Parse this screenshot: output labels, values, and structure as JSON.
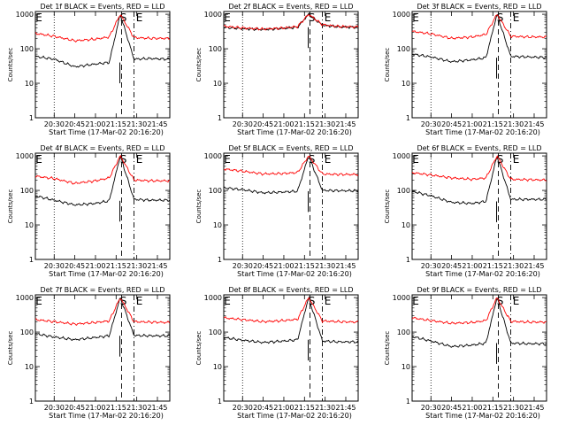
{
  "figure": {
    "panel_title_template": "Det {det} BLACK = Events, RED = LLD",
    "xlabel": "Start Time (17-Mar-02 20:16:20)",
    "ylabel": "Counts/sec",
    "markers": {
      "start": "S",
      "end": "E"
    },
    "colors": {
      "events": "#000000",
      "lld": "#ff0000",
      "frame": "#000000"
    }
  },
  "chart_data": [
    {
      "type": "line",
      "title": "Det 1f BLACK = Events, RED = LLD",
      "xlabel": "Start Time (17-Mar-02 20:16:20)",
      "ylabel": "Counts/sec",
      "x_ticks": [
        "20:30",
        "20:45",
        "21:00",
        "21:15",
        "21:30",
        "21:45"
      ],
      "y_ticks": [
        "1",
        "10",
        "100",
        "1000"
      ],
      "yscale": "log",
      "ylim": [
        1,
        1200
      ],
      "xlim": [
        "20:16:20",
        "21:54:00"
      ],
      "markers": {
        "S": "21:19",
        "E": "21:28",
        "dotted": "20:30"
      },
      "series": [
        {
          "name": "BLACK = Events",
          "color": "#000000",
          "x": [
            "20:16",
            "20:30",
            "20:45",
            "21:00",
            "21:10",
            "21:18",
            "21:28",
            "21:40",
            "21:52"
          ],
          "values": [
            60,
            50,
            30,
            36,
            40,
            1000,
            50,
            52,
            50
          ]
        },
        {
          "name": "RED = LLD",
          "color": "#ff0000",
          "x": [
            "20:16",
            "20:30",
            "20:45",
            "21:00",
            "21:10",
            "21:18",
            "21:28",
            "21:40",
            "21:52"
          ],
          "values": [
            280,
            230,
            170,
            190,
            220,
            1000,
            210,
            200,
            200
          ]
        }
      ]
    },
    {
      "type": "line",
      "title": "Det 2f BLACK = Events, RED = LLD",
      "xlabel": "Start Time (17-Mar-02 20:16:20)",
      "ylabel": "Counts/sec",
      "x_ticks": [
        "20:30",
        "20:45",
        "21:00",
        "21:15",
        "21:30",
        "21:45"
      ],
      "y_ticks": [
        "1",
        "10",
        "100",
        "1000"
      ],
      "yscale": "log",
      "ylim": [
        1,
        1200
      ],
      "xlim": [
        "20:16:20",
        "21:54:00"
      ],
      "markers": {
        "S": "21:19",
        "E": "21:28",
        "dotted": "20:30"
      },
      "series": [
        {
          "name": "BLACK = Events",
          "color": "#000000",
          "x": [
            "20:16",
            "20:30",
            "20:45",
            "21:00",
            "21:10",
            "21:18",
            "21:28",
            "21:40",
            "21:52"
          ],
          "values": [
            420,
            380,
            360,
            390,
            420,
            1000,
            480,
            430,
            420
          ]
        },
        {
          "name": "RED = LLD",
          "color": "#ff0000",
          "x": [
            "20:16",
            "20:30",
            "20:45",
            "21:00",
            "21:10",
            "21:18",
            "21:28",
            "21:40",
            "21:52"
          ],
          "values": [
            450,
            400,
            370,
            400,
            440,
            1000,
            500,
            440,
            430
          ]
        }
      ]
    },
    {
      "type": "line",
      "title": "Det 3f BLACK = Events, RED = LLD",
      "xlabel": "Start Time (17-Mar-02 20:16:20)",
      "ylabel": "Counts/sec",
      "x_ticks": [
        "20:30",
        "20:45",
        "21:00",
        "21:15",
        "21:30",
        "21:45"
      ],
      "y_ticks": [
        "1",
        "10",
        "100",
        "1000"
      ],
      "yscale": "log",
      "ylim": [
        1,
        1200
      ],
      "xlim": [
        "20:16:20",
        "21:54:00"
      ],
      "markers": {
        "S": "21:19",
        "E": "21:28",
        "dotted": "20:30"
      },
      "series": [
        {
          "name": "BLACK = Events",
          "color": "#000000",
          "x": [
            "20:16",
            "20:30",
            "20:45",
            "21:00",
            "21:10",
            "21:18",
            "21:28",
            "21:40",
            "21:52"
          ],
          "values": [
            70,
            58,
            42,
            48,
            55,
            1000,
            60,
            58,
            56
          ]
        },
        {
          "name": "RED = LLD",
          "color": "#ff0000",
          "x": [
            "20:16",
            "20:30",
            "20:45",
            "21:00",
            "21:10",
            "21:18",
            "21:28",
            "21:40",
            "21:52"
          ],
          "values": [
            320,
            270,
            200,
            220,
            260,
            1000,
            230,
            220,
            220
          ]
        }
      ]
    },
    {
      "type": "line",
      "title": "Det 4f BLACK = Events, RED = LLD",
      "xlabel": "Start Time (17-Mar-02 20:16:20)",
      "ylabel": "Counts/sec",
      "x_ticks": [
        "20:30",
        "20:45",
        "21:00",
        "21:15",
        "21:30",
        "21:45"
      ],
      "y_ticks": [
        "1",
        "10",
        "100",
        "1000"
      ],
      "yscale": "log",
      "ylim": [
        1,
        1200
      ],
      "xlim": [
        "20:16:20",
        "21:54:00"
      ],
      "markers": {
        "S": "21:19",
        "E": "21:28",
        "dotted": "20:30"
      },
      "series": [
        {
          "name": "BLACK = Events",
          "color": "#000000",
          "x": [
            "20:16",
            "20:30",
            "20:45",
            "21:00",
            "21:10",
            "21:18",
            "21:28",
            "21:40",
            "21:52"
          ],
          "values": [
            70,
            52,
            38,
            42,
            50,
            1000,
            55,
            52,
            52
          ]
        },
        {
          "name": "RED = LLD",
          "color": "#ff0000",
          "x": [
            "20:16",
            "20:30",
            "20:45",
            "21:00",
            "21:10",
            "21:18",
            "21:28",
            "21:40",
            "21:52"
          ],
          "values": [
            260,
            220,
            160,
            190,
            230,
            1000,
            200,
            190,
            190
          ]
        }
      ]
    },
    {
      "type": "line",
      "title": "Det 5f BLACK = Events, RED = LLD",
      "xlabel": "Start Time (17-Mar-02 20:16:20)",
      "ylabel": "Counts/sec",
      "x_ticks": [
        "20:30",
        "20:45",
        "21:00",
        "21:15",
        "21:30",
        "21:45"
      ],
      "y_ticks": [
        "1",
        "10",
        "100",
        "1000"
      ],
      "yscale": "log",
      "ylim": [
        1,
        1200
      ],
      "xlim": [
        "20:16:20",
        "21:54:00"
      ],
      "markers": {
        "S": "21:19",
        "E": "21:28",
        "dotted": "20:30"
      },
      "series": [
        {
          "name": "BLACK = Events",
          "color": "#000000",
          "x": [
            "20:16",
            "20:30",
            "20:45",
            "21:00",
            "21:10",
            "21:18",
            "21:28",
            "21:40",
            "21:52"
          ],
          "values": [
            120,
            105,
            85,
            90,
            95,
            1000,
            100,
            98,
            98
          ]
        },
        {
          "name": "RED = LLD",
          "color": "#ff0000",
          "x": [
            "20:16",
            "20:30",
            "20:45",
            "21:00",
            "21:10",
            "21:18",
            "21:28",
            "21:40",
            "21:52"
          ],
          "values": [
            420,
            360,
            300,
            310,
            330,
            1000,
            300,
            290,
            290
          ]
        }
      ]
    },
    {
      "type": "line",
      "title": "Det 6f BLACK = Events, RED = LLD",
      "xlabel": "Start Time (17-Mar-02 20:16:20)",
      "ylabel": "Counts/sec",
      "x_ticks": [
        "20:30",
        "20:45",
        "21:00",
        "21:15",
        "21:30",
        "21:45"
      ],
      "y_ticks": [
        "1",
        "10",
        "100",
        "1000"
      ],
      "yscale": "log",
      "ylim": [
        1,
        1200
      ],
      "xlim": [
        "20:16:20",
        "21:54:00"
      ],
      "markers": {
        "S": "21:19",
        "E": "21:28",
        "dotted": "20:30"
      },
      "series": [
        {
          "name": "BLACK = Events",
          "color": "#000000",
          "x": [
            "20:16",
            "20:30",
            "20:45",
            "21:00",
            "21:10",
            "21:18",
            "21:28",
            "21:40",
            "21:52"
          ],
          "values": [
            95,
            70,
            45,
            42,
            48,
            1000,
            55,
            55,
            55
          ]
        },
        {
          "name": "RED = LLD",
          "color": "#ff0000",
          "x": [
            "20:16",
            "20:30",
            "20:45",
            "21:00",
            "21:10",
            "21:18",
            "21:28",
            "21:40",
            "21:52"
          ],
          "values": [
            330,
            280,
            230,
            210,
            230,
            1000,
            210,
            205,
            200
          ]
        }
      ]
    },
    {
      "type": "line",
      "title": "Det 7f BLACK = Events, RED = LLD",
      "xlabel": "Start Time (17-Mar-02 20:16:20)",
      "ylabel": "Counts/sec",
      "x_ticks": [
        "20:30",
        "20:45",
        "21:00",
        "21:15",
        "21:30",
        "21:45"
      ],
      "y_ticks": [
        "1",
        "10",
        "100",
        "1000"
      ],
      "yscale": "log",
      "ylim": [
        1,
        1200
      ],
      "xlim": [
        "20:16:20",
        "21:54:00"
      ],
      "markers": {
        "S": "21:19",
        "E": "21:28",
        "dotted": "20:30"
      },
      "series": [
        {
          "name": "BLACK = Events",
          "color": "#000000",
          "x": [
            "20:16",
            "20:30",
            "20:45",
            "21:00",
            "21:10",
            "21:18",
            "21:28",
            "21:40",
            "21:52"
          ],
          "values": [
            90,
            72,
            60,
            70,
            78,
            1000,
            80,
            78,
            78
          ]
        },
        {
          "name": "RED = LLD",
          "color": "#ff0000",
          "x": [
            "20:16",
            "20:30",
            "20:45",
            "21:00",
            "21:10",
            "21:18",
            "21:28",
            "21:40",
            "21:52"
          ],
          "values": [
            230,
            200,
            170,
            190,
            210,
            1000,
            200,
            195,
            190
          ]
        }
      ]
    },
    {
      "type": "line",
      "title": "Det 8f BLACK = Events, RED = LLD",
      "xlabel": "Start Time (17-Mar-02 20:16:20)",
      "ylabel": "Counts/sec",
      "x_ticks": [
        "20:30",
        "20:45",
        "21:00",
        "21:15",
        "21:30",
        "21:45"
      ],
      "y_ticks": [
        "1",
        "10",
        "100",
        "1000"
      ],
      "yscale": "log",
      "ylim": [
        1,
        1200
      ],
      "xlim": [
        "20:16:20",
        "21:54:00"
      ],
      "markers": {
        "S": "21:19",
        "E": "21:28",
        "dotted": "20:30"
      },
      "series": [
        {
          "name": "BLACK = Events",
          "color": "#000000",
          "x": [
            "20:16",
            "20:30",
            "20:45",
            "21:00",
            "21:10",
            "21:18",
            "21:28",
            "21:40",
            "21:52"
          ],
          "values": [
            70,
            58,
            50,
            55,
            60,
            1000,
            55,
            52,
            52
          ]
        },
        {
          "name": "RED = LLD",
          "color": "#ff0000",
          "x": [
            "20:16",
            "20:30",
            "20:45",
            "21:00",
            "21:10",
            "21:18",
            "21:28",
            "21:40",
            "21:52"
          ],
          "values": [
            260,
            230,
            200,
            215,
            235,
            1000,
            210,
            200,
            195
          ]
        }
      ]
    },
    {
      "type": "line",
      "title": "Det 9f BLACK = Events, RED = LLD",
      "xlabel": "Start Time (17-Mar-02 20:16:20)",
      "ylabel": "Counts/sec",
      "x_ticks": [
        "20:30",
        "20:45",
        "21:00",
        "21:15",
        "21:30",
        "21:45"
      ],
      "y_ticks": [
        "1",
        "10",
        "100",
        "1000"
      ],
      "yscale": "log",
      "ylim": [
        1,
        1200
      ],
      "xlim": [
        "20:16:20",
        "21:54:00"
      ],
      "markers": {
        "S": "21:19",
        "E": "21:28",
        "dotted": "20:30"
      },
      "series": [
        {
          "name": "BLACK = Events",
          "color": "#000000",
          "x": [
            "20:16",
            "20:30",
            "20:45",
            "21:00",
            "21:10",
            "21:18",
            "21:28",
            "21:40",
            "21:52"
          ],
          "values": [
            75,
            55,
            38,
            42,
            48,
            1000,
            48,
            46,
            46
          ]
        },
        {
          "name": "RED = LLD",
          "color": "#ff0000",
          "x": [
            "20:16",
            "20:30",
            "20:45",
            "21:00",
            "21:10",
            "21:18",
            "21:28",
            "21:40",
            "21:52"
          ],
          "values": [
            260,
            215,
            180,
            190,
            215,
            1000,
            205,
            195,
            195
          ]
        }
      ]
    }
  ]
}
